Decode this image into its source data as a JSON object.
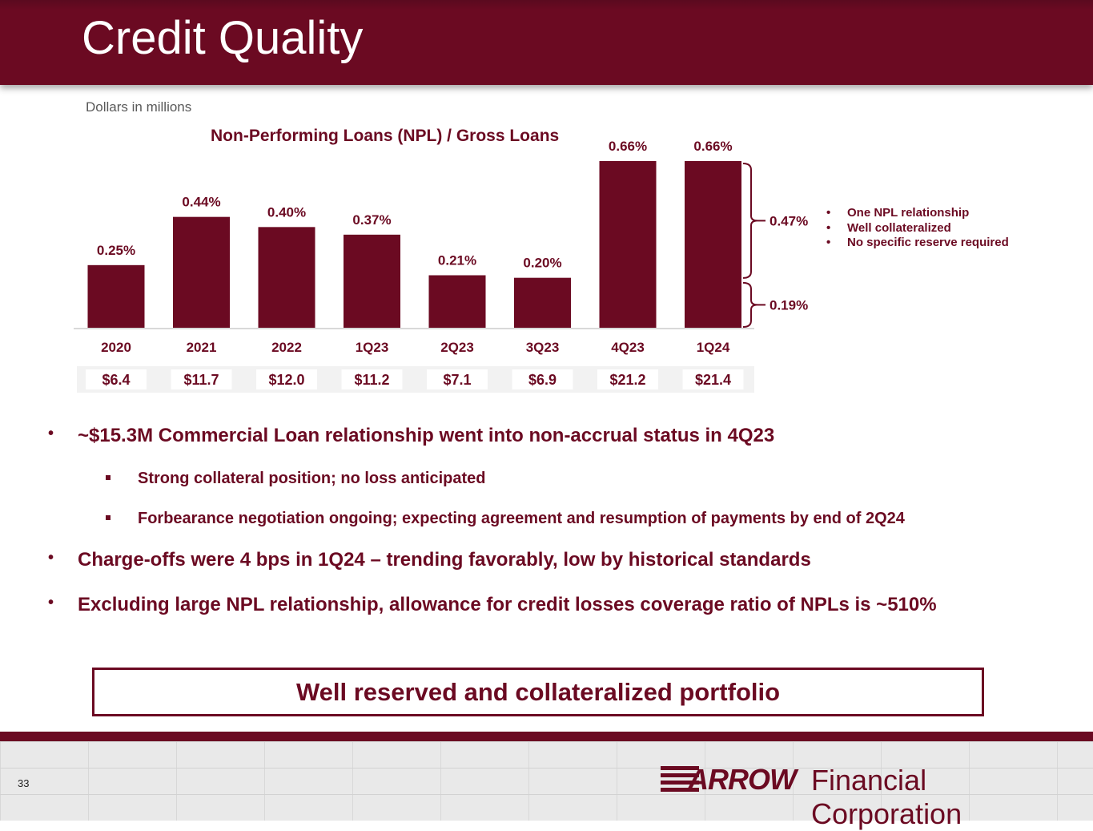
{
  "slide": {
    "title": "Credit Quality",
    "units_note": "Dollars in millions",
    "page_number": "33"
  },
  "chart_data": {
    "type": "bar",
    "title": "Non-Performing Loans (NPL) / Gross Loans",
    "categories": [
      "2020",
      "2021",
      "2022",
      "1Q23",
      "2Q23",
      "3Q23",
      "4Q23",
      "1Q24"
    ],
    "values": [
      0.25,
      0.44,
      0.4,
      0.37,
      0.21,
      0.2,
      0.66,
      0.66
    ],
    "value_labels": [
      "0.25%",
      "0.44%",
      "0.40%",
      "0.37%",
      "0.21%",
      "0.20%",
      "0.66%",
      "0.66%"
    ],
    "npl_amounts": [
      "$6.4",
      "$11.7",
      "$12.0",
      "$11.2",
      "$7.1",
      "$6.9",
      "$21.2",
      "$21.4"
    ],
    "breakdown": {
      "category": "1Q24",
      "segments": [
        {
          "label": "0.47%",
          "value": 0.47
        },
        {
          "label": "0.19%",
          "value": 0.19
        }
      ]
    },
    "annotations": [
      "One NPL relationship",
      "Well collateralized",
      "No specific reserve required"
    ],
    "bar_color": "#6b0a22",
    "ylim": [
      0,
      0.66
    ]
  },
  "bullets": [
    {
      "level": 1,
      "text": "~$15.3M Commercial Loan relationship went into non-accrual status in 4Q23"
    },
    {
      "level": 2,
      "text": "Strong collateral position; no loss anticipated"
    },
    {
      "level": 2,
      "text": "Forbearance negotiation ongoing; expecting agreement and resumption of payments by end of 2Q24"
    },
    {
      "level": 1,
      "text": "Charge-offs were 4 bps in 1Q24 – trending favorably, low by historical standards"
    },
    {
      "level": 1,
      "text": "Excluding large NPL relationship, allowance for credit losses coverage ratio of NPLs is ~510%"
    }
  ],
  "callout": "Well reserved and collateralized portfolio",
  "logo": {
    "brand": "ARROW",
    "rest": "Financial Corporation"
  },
  "colors": {
    "accent": "#6b0a22",
    "text_gray": "#595959"
  }
}
